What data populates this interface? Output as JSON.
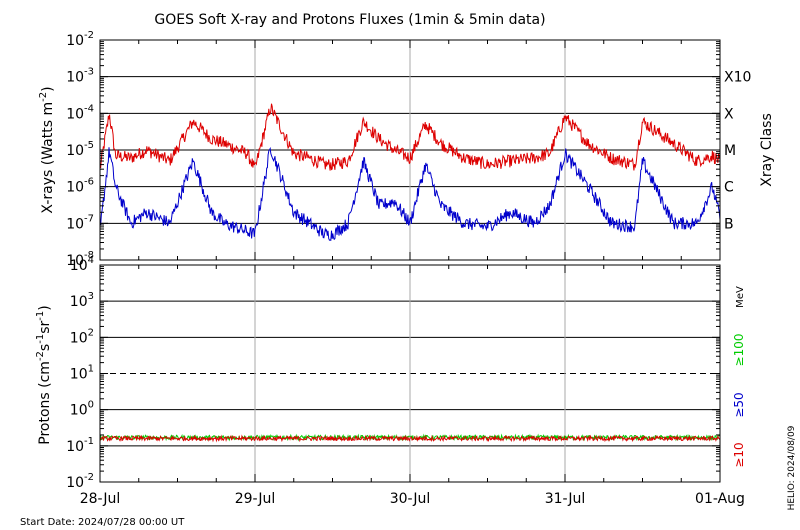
{
  "chart_data": [
    {
      "type": "line",
      "title": "GOES Soft X-ray and Protons Fluxes   (1min & 5min data)",
      "ylabel_base": "X-rays (Watts m",
      "ylabel_exp": "-2",
      "ylabel_close": ")",
      "yscale": "log",
      "ylim": [
        1e-08,
        0.01
      ],
      "y_tick_exponents": [
        -8,
        -7,
        -6,
        -5,
        -4,
        -3,
        -2
      ],
      "right_axis_title": "Xray Class",
      "classes": [
        {
          "label": "B",
          "value": 1e-07
        },
        {
          "label": "C",
          "value": 1e-06
        },
        {
          "label": "M",
          "value": 1e-05
        },
        {
          "label": "X",
          "value": 0.0001
        },
        {
          "label": "X10",
          "value": 0.001
        }
      ],
      "grid_lines": [
        1e-07,
        1e-06,
        1e-05,
        0.0001,
        0.001
      ],
      "series": [
        {
          "color": "#dd0000",
          "x": [
            0,
            0.06,
            0.1,
            0.2,
            0.3,
            0.45,
            0.6,
            0.72,
            0.8,
            0.95,
            1.0,
            1.1,
            1.25,
            1.35,
            1.45,
            1.5,
            1.6,
            1.7,
            1.8,
            1.9,
            2.0,
            2.1,
            2.2,
            2.35,
            2.5,
            2.65,
            2.8,
            2.9,
            3.0,
            3.15,
            3.3,
            3.45,
            3.5,
            3.7,
            3.85,
            3.95,
            4.0
          ],
          "y": [
            3e-06,
            0.0001,
            7e-06,
            6e-06,
            1e-05,
            5e-06,
            6e-05,
            2e-05,
            1.5e-05,
            8e-06,
            3e-06,
            0.00015,
            8e-06,
            6e-06,
            4e-06,
            4e-06,
            5e-06,
            6e-05,
            2e-05,
            1e-05,
            6e-06,
            5e-05,
            1.5e-05,
            6e-06,
            4e-06,
            5e-06,
            6e-06,
            8e-06,
            8e-05,
            1.5e-05,
            6e-06,
            4e-06,
            6e-05,
            1.5e-05,
            5e-06,
            7e-06,
            5e-06
          ]
        },
        {
          "color": "#0000cc",
          "x": [
            0,
            0.06,
            0.1,
            0.2,
            0.3,
            0.45,
            0.6,
            0.72,
            0.8,
            0.95,
            1.0,
            1.1,
            1.25,
            1.35,
            1.45,
            1.5,
            1.6,
            1.7,
            1.8,
            1.9,
            2.0,
            2.1,
            2.2,
            2.35,
            2.5,
            2.65,
            2.8,
            2.9,
            3.0,
            3.15,
            3.3,
            3.45,
            3.5,
            3.7,
            3.85,
            3.95,
            4.0
          ],
          "y": [
            6e-08,
            1e-05,
            1e-06,
            1e-07,
            2e-07,
            1e-07,
            5e-06,
            2e-07,
            1e-07,
            6e-08,
            5e-08,
            1.2e-05,
            2e-07,
            1e-07,
            5e-08,
            5e-08,
            1e-07,
            5e-06,
            3e-07,
            4e-07,
            1e-07,
            4e-06,
            3e-07,
            1e-07,
            8e-08,
            2e-07,
            1e-07,
            3e-07,
            8e-06,
            1e-06,
            1e-07,
            8e-08,
            5e-06,
            1e-07,
            1e-07,
            1e-06,
            1.5e-07
          ]
        }
      ]
    },
    {
      "type": "line",
      "ylabel_base": "Protons (cm",
      "ylabel_mid": "s",
      "ylabel_tail": "sr",
      "ylabel_close": ")",
      "ylabel_exp1": "-2",
      "ylabel_exp2": "-1",
      "ylabel_exp3": "-1",
      "yscale": "log",
      "ylim": [
        0.01,
        10000
      ],
      "y_tick_exponents": [
        -2,
        -1,
        0,
        1,
        2,
        3,
        4
      ],
      "grid_lines": [
        0.1,
        1,
        100,
        1000
      ],
      "dashed_line": 10,
      "unit": "MeV",
      "energy_labels": [
        {
          "label": "≥100",
          "color": "#00cc00"
        },
        {
          "label": "≥50",
          "color": "#0000cc"
        },
        {
          "label": "≥10",
          "color": "#dd0000"
        }
      ],
      "series": [
        {
          "color": "#00cc00",
          "x": [
            0,
            1,
            2,
            3,
            4
          ],
          "y": [
            0.17,
            0.17,
            0.17,
            0.17,
            0.17
          ]
        },
        {
          "color": "#dd0000",
          "x": [
            0,
            1,
            2,
            3,
            4
          ],
          "y": [
            0.16,
            0.16,
            0.16,
            0.16,
            0.16
          ]
        }
      ]
    }
  ],
  "x_axis": {
    "categories": [
      "28-Jul",
      "29-Jul",
      "30-Jul",
      "31-Jul",
      "01-Aug"
    ],
    "xlim": [
      0,
      4
    ]
  },
  "footer": {
    "start_date": "Start Date: 2024/07/28 00:00 UT",
    "credit": "HELIO: 2024/08/09"
  }
}
